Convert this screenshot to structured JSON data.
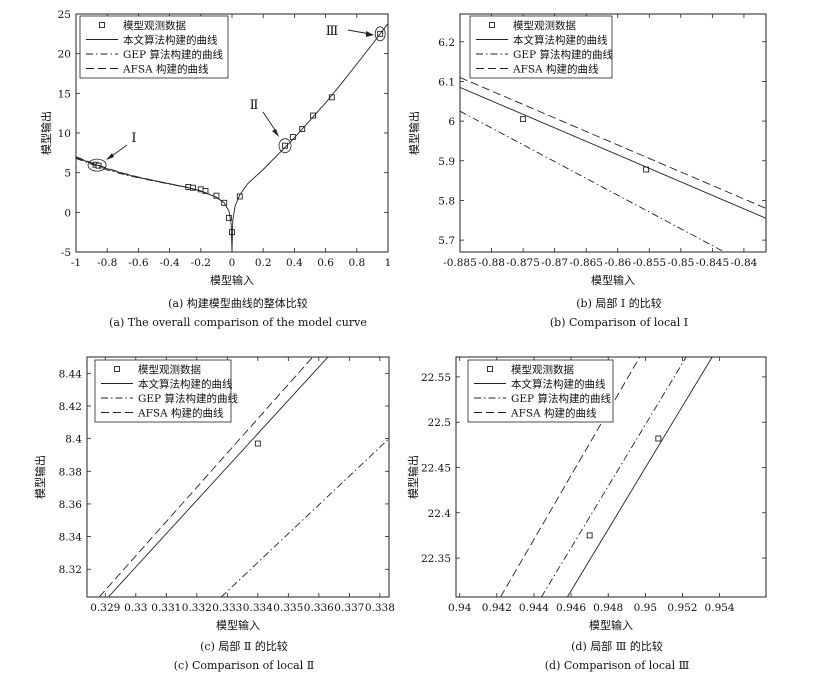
{
  "chart_data": [
    {
      "type": "line",
      "caption_cn": "(a) 构建模型曲线的整体比较",
      "caption_en": "(a) The overall comparison of the model curve",
      "xlabel": "模型输入",
      "ylabel": "模型输出",
      "xlim": [
        -1,
        1
      ],
      "ylim": [
        -5,
        25
      ],
      "xticks": [
        -1,
        -0.8,
        -0.6,
        -0.4,
        -0.2,
        0,
        0.2,
        0.4,
        0.6,
        0.8,
        1
      ],
      "yticks": [
        -5,
        0,
        5,
        10,
        15,
        20,
        25
      ],
      "legend": [
        "模型观测数据",
        "本文算法构建的曲线",
        "GEP 算法构建的曲线",
        "AFSA 构建的曲线"
      ],
      "legend_position": "top-left",
      "annotations": [
        "Ⅰ",
        "Ⅱ",
        "Ⅲ"
      ],
      "series": [
        {
          "name": "模型观测数据",
          "style": "marker",
          "x": [
            -0.875,
            -0.855,
            -0.28,
            -0.25,
            -0.2,
            -0.17,
            -0.1,
            -0.05,
            -0.02,
            0.0,
            0.05,
            0.34,
            0.39,
            0.45,
            0.52,
            0.64,
            0.95
          ],
          "y": [
            6.0,
            5.88,
            3.2,
            3.1,
            2.9,
            2.7,
            2.1,
            1.2,
            -0.7,
            -2.5,
            2.0,
            8.4,
            9.5,
            10.5,
            12.2,
            14.5,
            22.5
          ]
        },
        {
          "name": "本文算法构建的曲线",
          "style": "solid",
          "x": [
            -1,
            -0.9,
            -0.8,
            -0.7,
            -0.6,
            -0.5,
            -0.4,
            -0.3,
            -0.2,
            -0.1,
            -0.05,
            -0.02,
            -0.005,
            0,
            0.005,
            0.02,
            0.05,
            0.1,
            0.2,
            0.3,
            0.4,
            0.5,
            0.6,
            0.7,
            0.8,
            0.9,
            1.0
          ],
          "y": [
            6.9,
            6.2,
            5.5,
            4.9,
            4.4,
            4.0,
            3.6,
            3.2,
            2.7,
            1.9,
            1.2,
            0.2,
            -1.5,
            -5,
            -1.0,
            0.8,
            2.2,
            3.6,
            5.4,
            7.4,
            9.4,
            11.6,
            13.8,
            16.2,
            18.7,
            21.2,
            23.8
          ]
        },
        {
          "name": "GEP 算法构建的曲线",
          "style": "dashdot",
          "x": [
            -1,
            -0.9,
            -0.8,
            -0.7,
            -0.6,
            -0.5,
            -0.4,
            -0.3,
            -0.2,
            -0.1,
            -0.05
          ],
          "y": [
            6.8,
            6.05,
            5.35,
            4.8,
            4.35,
            3.95,
            3.55,
            3.2,
            2.7,
            1.9,
            1.2
          ]
        },
        {
          "name": "AFSA 构建的曲线",
          "style": "dashed",
          "x": [
            -1,
            -0.9,
            -0.8,
            -0.7,
            -0.6,
            -0.5,
            -0.4,
            -0.3,
            -0.2,
            -0.1,
            -0.05
          ],
          "y": [
            7.0,
            6.25,
            5.55,
            4.95,
            4.45,
            4.0,
            3.6,
            3.2,
            2.7,
            1.9,
            1.2
          ]
        }
      ]
    },
    {
      "type": "line",
      "caption_cn": "(b) 局部 Ⅰ 的比较",
      "caption_en": "(b) Comparison of local Ⅰ",
      "xlabel": "模型输入",
      "ylabel": "模型输出",
      "xlim": [
        -0.885,
        -0.8365
      ],
      "ylim": [
        5.67,
        6.27
      ],
      "xticks": [
        -0.885,
        -0.88,
        -0.875,
        -0.87,
        -0.865,
        -0.86,
        -0.855,
        -0.85,
        -0.845,
        -0.84
      ],
      "yticks": [
        5.7,
        5.8,
        5.9,
        6,
        6.1,
        6.2
      ],
      "legend": [
        "模型观测数据",
        "本文算法构建的曲线",
        "GEP 算法构建的曲线",
        "AFSA 构建的曲线"
      ],
      "legend_position": "top-left",
      "series": [
        {
          "name": "模型观测数据",
          "style": "marker",
          "x": [
            -0.875,
            -0.8555
          ],
          "y": [
            6.005,
            5.878
          ]
        },
        {
          "name": "本文算法构建的曲线",
          "style": "solid",
          "x": [
            -0.885,
            -0.8365
          ],
          "y": [
            6.085,
            5.755
          ]
        },
        {
          "name": "GEP 算法构建的曲线",
          "style": "dashdot",
          "x": [
            -0.885,
            -0.8425
          ],
          "y": [
            6.025,
            5.665
          ]
        },
        {
          "name": "AFSA 构建的曲线",
          "style": "dashed",
          "x": [
            -0.885,
            -0.8365
          ],
          "y": [
            6.11,
            5.78
          ]
        }
      ]
    },
    {
      "type": "line",
      "caption_cn": "(c) 局部 Ⅱ 的比较",
      "caption_en": "(c) Comparison of local Ⅱ",
      "xlabel": "模型输入",
      "ylabel": "模型输出",
      "xlim": [
        0.3284,
        0.3383
      ],
      "ylim": [
        8.303,
        8.45
      ],
      "xticks": [
        0.329,
        0.33,
        0.331,
        0.332,
        0.333,
        0.334,
        0.335,
        0.336,
        0.337,
        0.338
      ],
      "yticks": [
        8.32,
        8.34,
        8.36,
        8.38,
        8.4,
        8.42,
        8.44
      ],
      "legend": [
        "模型观测数据",
        "本文算法构建的曲线",
        "GEP 算法构建的曲线",
        "AFSA 构建的曲线"
      ],
      "legend_position": "top-left",
      "series": [
        {
          "name": "模型观测数据",
          "style": "marker",
          "x": [
            0.334
          ],
          "y": [
            8.397
          ]
        },
        {
          "name": "本文算法构建的曲线",
          "style": "solid",
          "x": [
            0.3291,
            0.3363
          ],
          "y": [
            8.303,
            8.45
          ]
        },
        {
          "name": "GEP 算法构建的曲线",
          "style": "dashdot",
          "x": [
            0.3328,
            0.3383
          ],
          "y": [
            8.303,
            8.4
          ]
        },
        {
          "name": "AFSA 构建的曲线",
          "style": "dashed",
          "x": [
            0.3288,
            0.3358
          ],
          "y": [
            8.303,
            8.45
          ]
        }
      ]
    },
    {
      "type": "line",
      "caption_cn": "(d) 局部 Ⅲ 的比较",
      "caption_en": "(d) Comparison of local Ⅲ",
      "xlabel": "模型输入",
      "ylabel": "模型输出",
      "xlim": [
        0.9398,
        0.9565
      ],
      "ylim": [
        22.307,
        22.572
      ],
      "xticks": [
        0.94,
        0.942,
        0.944,
        0.946,
        0.948,
        0.95,
        0.952,
        0.954
      ],
      "yticks": [
        22.35,
        22.4,
        22.45,
        22.5,
        22.55
      ],
      "legend": [
        "模型观测数据",
        "本文算法构建的曲线",
        "GEP 算法构建的曲线",
        "AFSA 构建的曲线"
      ],
      "legend_position": "top-left",
      "series": [
        {
          "name": "模型观测数据",
          "style": "marker",
          "x": [
            0.947,
            0.9507
          ],
          "y": [
            22.375,
            22.482
          ]
        },
        {
          "name": "本文算法构建的曲线",
          "style": "solid",
          "x": [
            0.9458,
            0.9536
          ],
          "y": [
            22.307,
            22.572
          ]
        },
        {
          "name": "GEP 算法构建的曲线",
          "style": "dashdot",
          "x": [
            0.9444,
            0.9522
          ],
          "y": [
            22.307,
            22.572
          ]
        },
        {
          "name": "AFSA 构建的曲线",
          "style": "dashed",
          "x": [
            0.9422,
            0.9497
          ],
          "y": [
            22.307,
            22.572
          ]
        }
      ]
    }
  ]
}
